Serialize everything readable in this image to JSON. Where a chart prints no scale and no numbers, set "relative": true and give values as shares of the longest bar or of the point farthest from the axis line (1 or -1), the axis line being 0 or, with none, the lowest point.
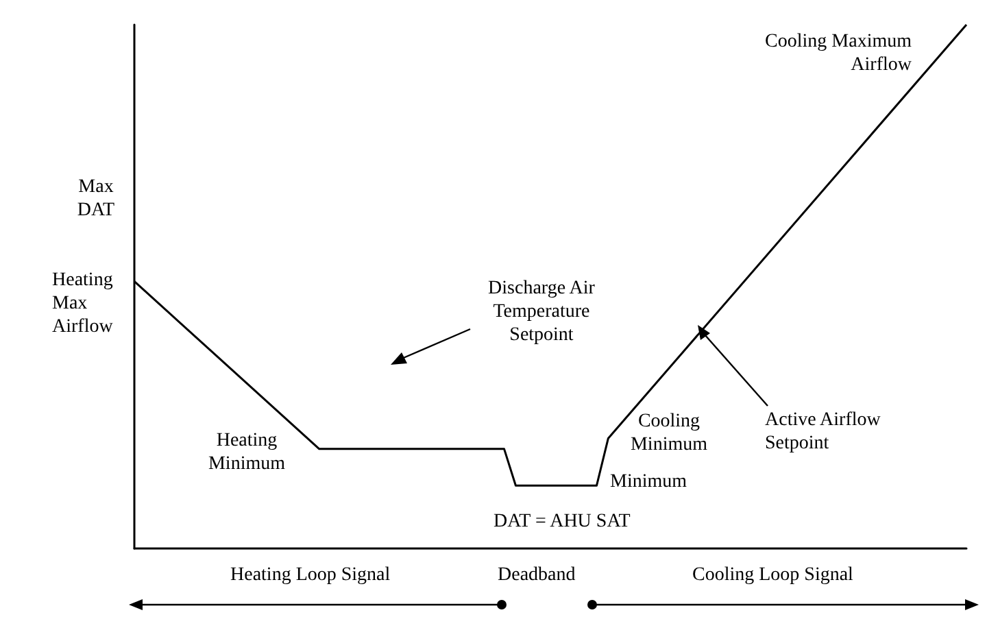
{
  "chart_data": {
    "type": "line",
    "relative": true,
    "marker": "none",
    "line_style": "solid",
    "categories": [
      null,
      null,
      null,
      null,
      null,
      null,
      null,
      null,
      null,
      null,
      null,
      null,
      null,
      null,
      null,
      null,
      null,
      null,
      null,
      null,
      null,
      null,
      null,
      null,
      null,
      null,
      null,
      null,
      null,
      null,
      null,
      null,
      null,
      null,
      null,
      null,
      null,
      null,
      null,
      null,
      null,
      null,
      null,
      null,
      null,
      null,
      null,
      null,
      null,
      null,
      null,
      null,
      null,
      null,
      null,
      null,
      null,
      null,
      null,
      null,
      null,
      null,
      null,
      null,
      null,
      null,
      null,
      null,
      null,
      null,
      null,
      null,
      null
    ],
    "series": [
      {
        "color": "#000000",
        "values": [
          0.51,
          null,
          null,
          null,
          null,
          null,
          null,
          null,
          null,
          null,
          null,
          null,
          null,
          null,
          null,
          null,
          0.19,
          null,
          null,
          null,
          null,
          null,
          null,
          null,
          null,
          null,
          null,
          null,
          null,
          null,
          null,
          null,
          0.19,
          0.12,
          null,
          null,
          null,
          null,
          null,
          null,
          0.12,
          0.21,
          null,
          null,
          null,
          null,
          null,
          null,
          null,
          null,
          null,
          null,
          null,
          null,
          null,
          null,
          null,
          null,
          null,
          null,
          null,
          null,
          null,
          null,
          null,
          null,
          null,
          null,
          null,
          null,
          null,
          null,
          1
        ]
      }
    ],
    "annotations": [
      "Max DAT",
      "Heating Max Airflow",
      "Discharge Air Temperature Setpoint",
      "Heating Minimum",
      "Minimum",
      "Cooling Minimum",
      "Active Airflow Setpoint",
      "Cooling Maximum Airflow",
      "DAT = AHU SAT",
      "Heating Loop Signal",
      "Deadband",
      "Cooling Loop Signal"
    ]
  }
}
